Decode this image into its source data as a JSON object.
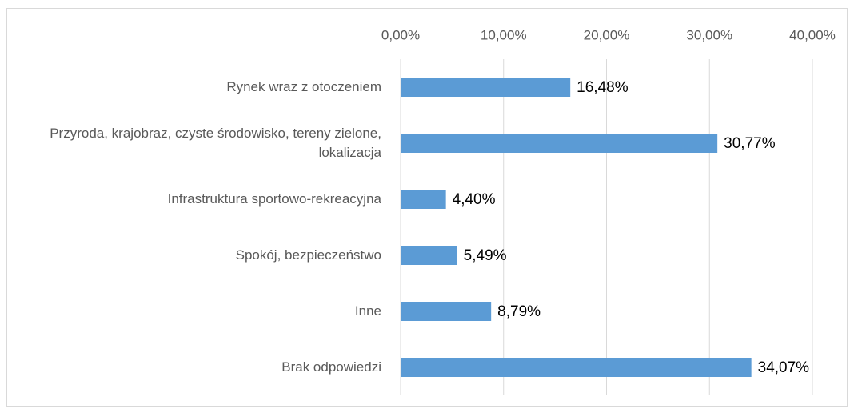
{
  "chart_data": {
    "type": "bar",
    "orientation": "horizontal",
    "categories": [
      "Rynek wraz z otoczeniem",
      "Przyroda, krajobraz, czyste środowisko, tereny zielone, lokalizacja",
      "Infrastruktura sportowo-rekreacyjna",
      "Spokój, bezpieczeństwo",
      "Inne",
      "Brak odpowiedzi"
    ],
    "values": [
      16.48,
      30.77,
      4.4,
      5.49,
      8.79,
      34.07
    ],
    "value_labels": [
      "16,48%",
      "30,77%",
      "4,40%",
      "5,49%",
      "8,79%",
      "34,07%"
    ],
    "color": "#5b9bd5",
    "xlim": [
      0,
      40
    ],
    "xticks": [
      {
        "value": 0,
        "label": "0,00%"
      },
      {
        "value": 10,
        "label": "10,00%"
      },
      {
        "value": 20,
        "label": "20,00%"
      },
      {
        "value": 30,
        "label": "30,00%"
      },
      {
        "value": 40,
        "label": "40,00%"
      }
    ],
    "grid": true
  }
}
